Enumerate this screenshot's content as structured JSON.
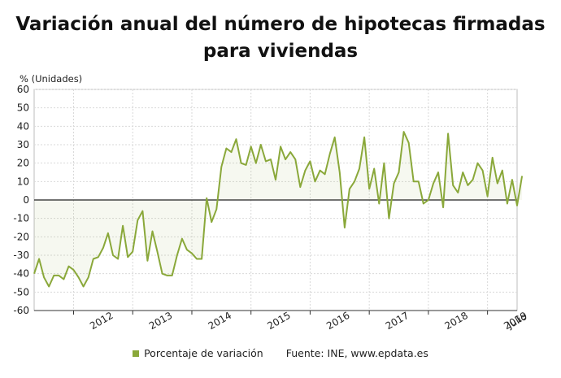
{
  "chart_data": {
    "type": "line",
    "title": "Variación anual del número de hipotecas firmadas para viviendas",
    "ylabel": "% (Unidades)",
    "ylim": [
      -60,
      60
    ],
    "yticks": [
      60,
      50,
      40,
      30,
      20,
      10,
      0,
      -10,
      -20,
      -30,
      -40,
      -50,
      -60
    ],
    "xlim": [
      2011.333,
      2019.5
    ],
    "xticks": [
      "2012",
      "2013",
      "2014",
      "2015",
      "2016",
      "2017",
      "2018",
      "2019",
      "Julio"
    ],
    "grid": true,
    "legend_position": "bottom",
    "series": [
      {
        "name": "Porcentaje de variación",
        "color": "#8aa83a",
        "start": "2011-05",
        "values": [
          -40,
          -32,
          -42,
          -47,
          -41,
          -41,
          -43,
          -36,
          -38,
          -42,
          -47,
          -42,
          -32,
          -31,
          -26,
          -18,
          -30,
          -32,
          -14,
          -31,
          -28,
          -11,
          -6,
          -33,
          -17,
          -28,
          -40,
          -41,
          -41,
          -30,
          -21,
          -27,
          -29,
          -32,
          -32,
          1,
          -12,
          -5,
          18,
          28,
          26,
          33,
          20,
          19,
          29,
          20,
          30,
          21,
          22,
          11,
          29,
          22,
          26,
          22,
          7,
          16,
          21,
          10,
          16,
          14,
          25,
          34,
          15,
          -15,
          6,
          10,
          17,
          34,
          6,
          17,
          -2,
          20,
          -10,
          9,
          15,
          37,
          31,
          10,
          10,
          -2,
          0,
          9,
          15,
          -4,
          36,
          8,
          4,
          15,
          8,
          11,
          20,
          16,
          2,
          23,
          9,
          16,
          -2,
          11,
          -3,
          13
        ]
      }
    ]
  },
  "legend": {
    "series_label": "Porcentaje de variación",
    "source": "Fuente: INE, www.epdata.es"
  }
}
